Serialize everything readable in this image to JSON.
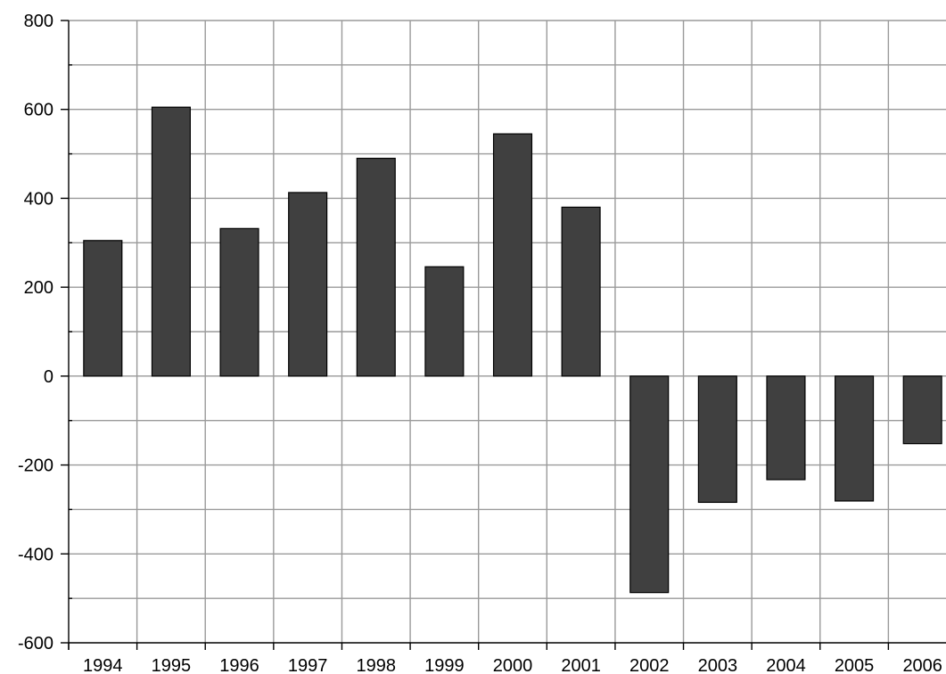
{
  "chart_data": {
    "type": "bar",
    "title": "",
    "xlabel": "",
    "ylabel": "",
    "categories": [
      "1994",
      "1995",
      "1996",
      "1997",
      "1998",
      "1999",
      "2000",
      "2001",
      "2002",
      "2003",
      "2004",
      "2005",
      "2006"
    ],
    "values": [
      305,
      605,
      332,
      413,
      490,
      246,
      545,
      380,
      -487,
      -284,
      -233,
      -281,
      -152
    ],
    "ylim": [
      -600,
      800
    ],
    "y_major_ticks": [
      -600,
      -400,
      -200,
      0,
      200,
      400,
      600,
      800
    ],
    "y_minor_step": 100,
    "grid": true,
    "legend": "none",
    "bar_color": "#404040",
    "gridline_color": "#9a9a9a"
  }
}
